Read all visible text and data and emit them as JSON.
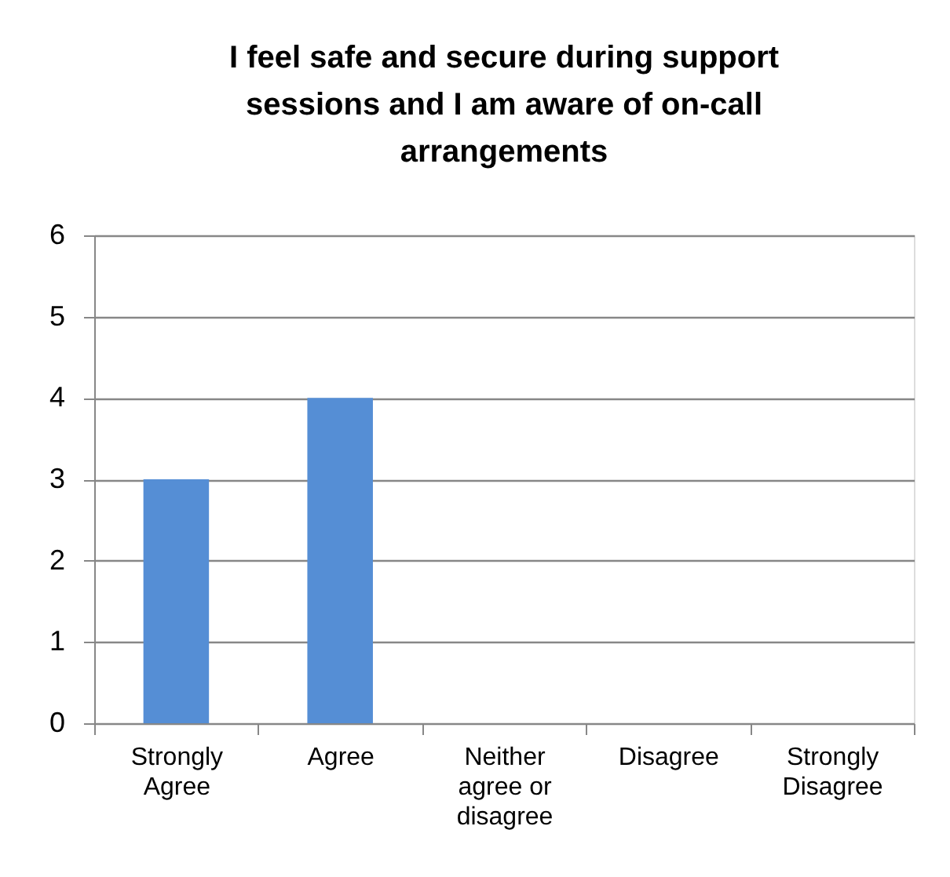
{
  "chart_data": {
    "type": "bar",
    "title": "I feel safe and secure during support sessions and I am aware of on-call arrangements",
    "categories": [
      "Strongly Agree",
      "Agree",
      "Neither agree or disagree",
      "Disagree",
      "Strongly Disagree"
    ],
    "values": [
      3,
      4,
      0,
      0,
      0
    ],
    "color": "#558ed5",
    "ylim": [
      0,
      6
    ],
    "yticks": [
      0,
      1,
      2,
      3,
      4,
      5,
      6
    ],
    "grid": "y"
  }
}
